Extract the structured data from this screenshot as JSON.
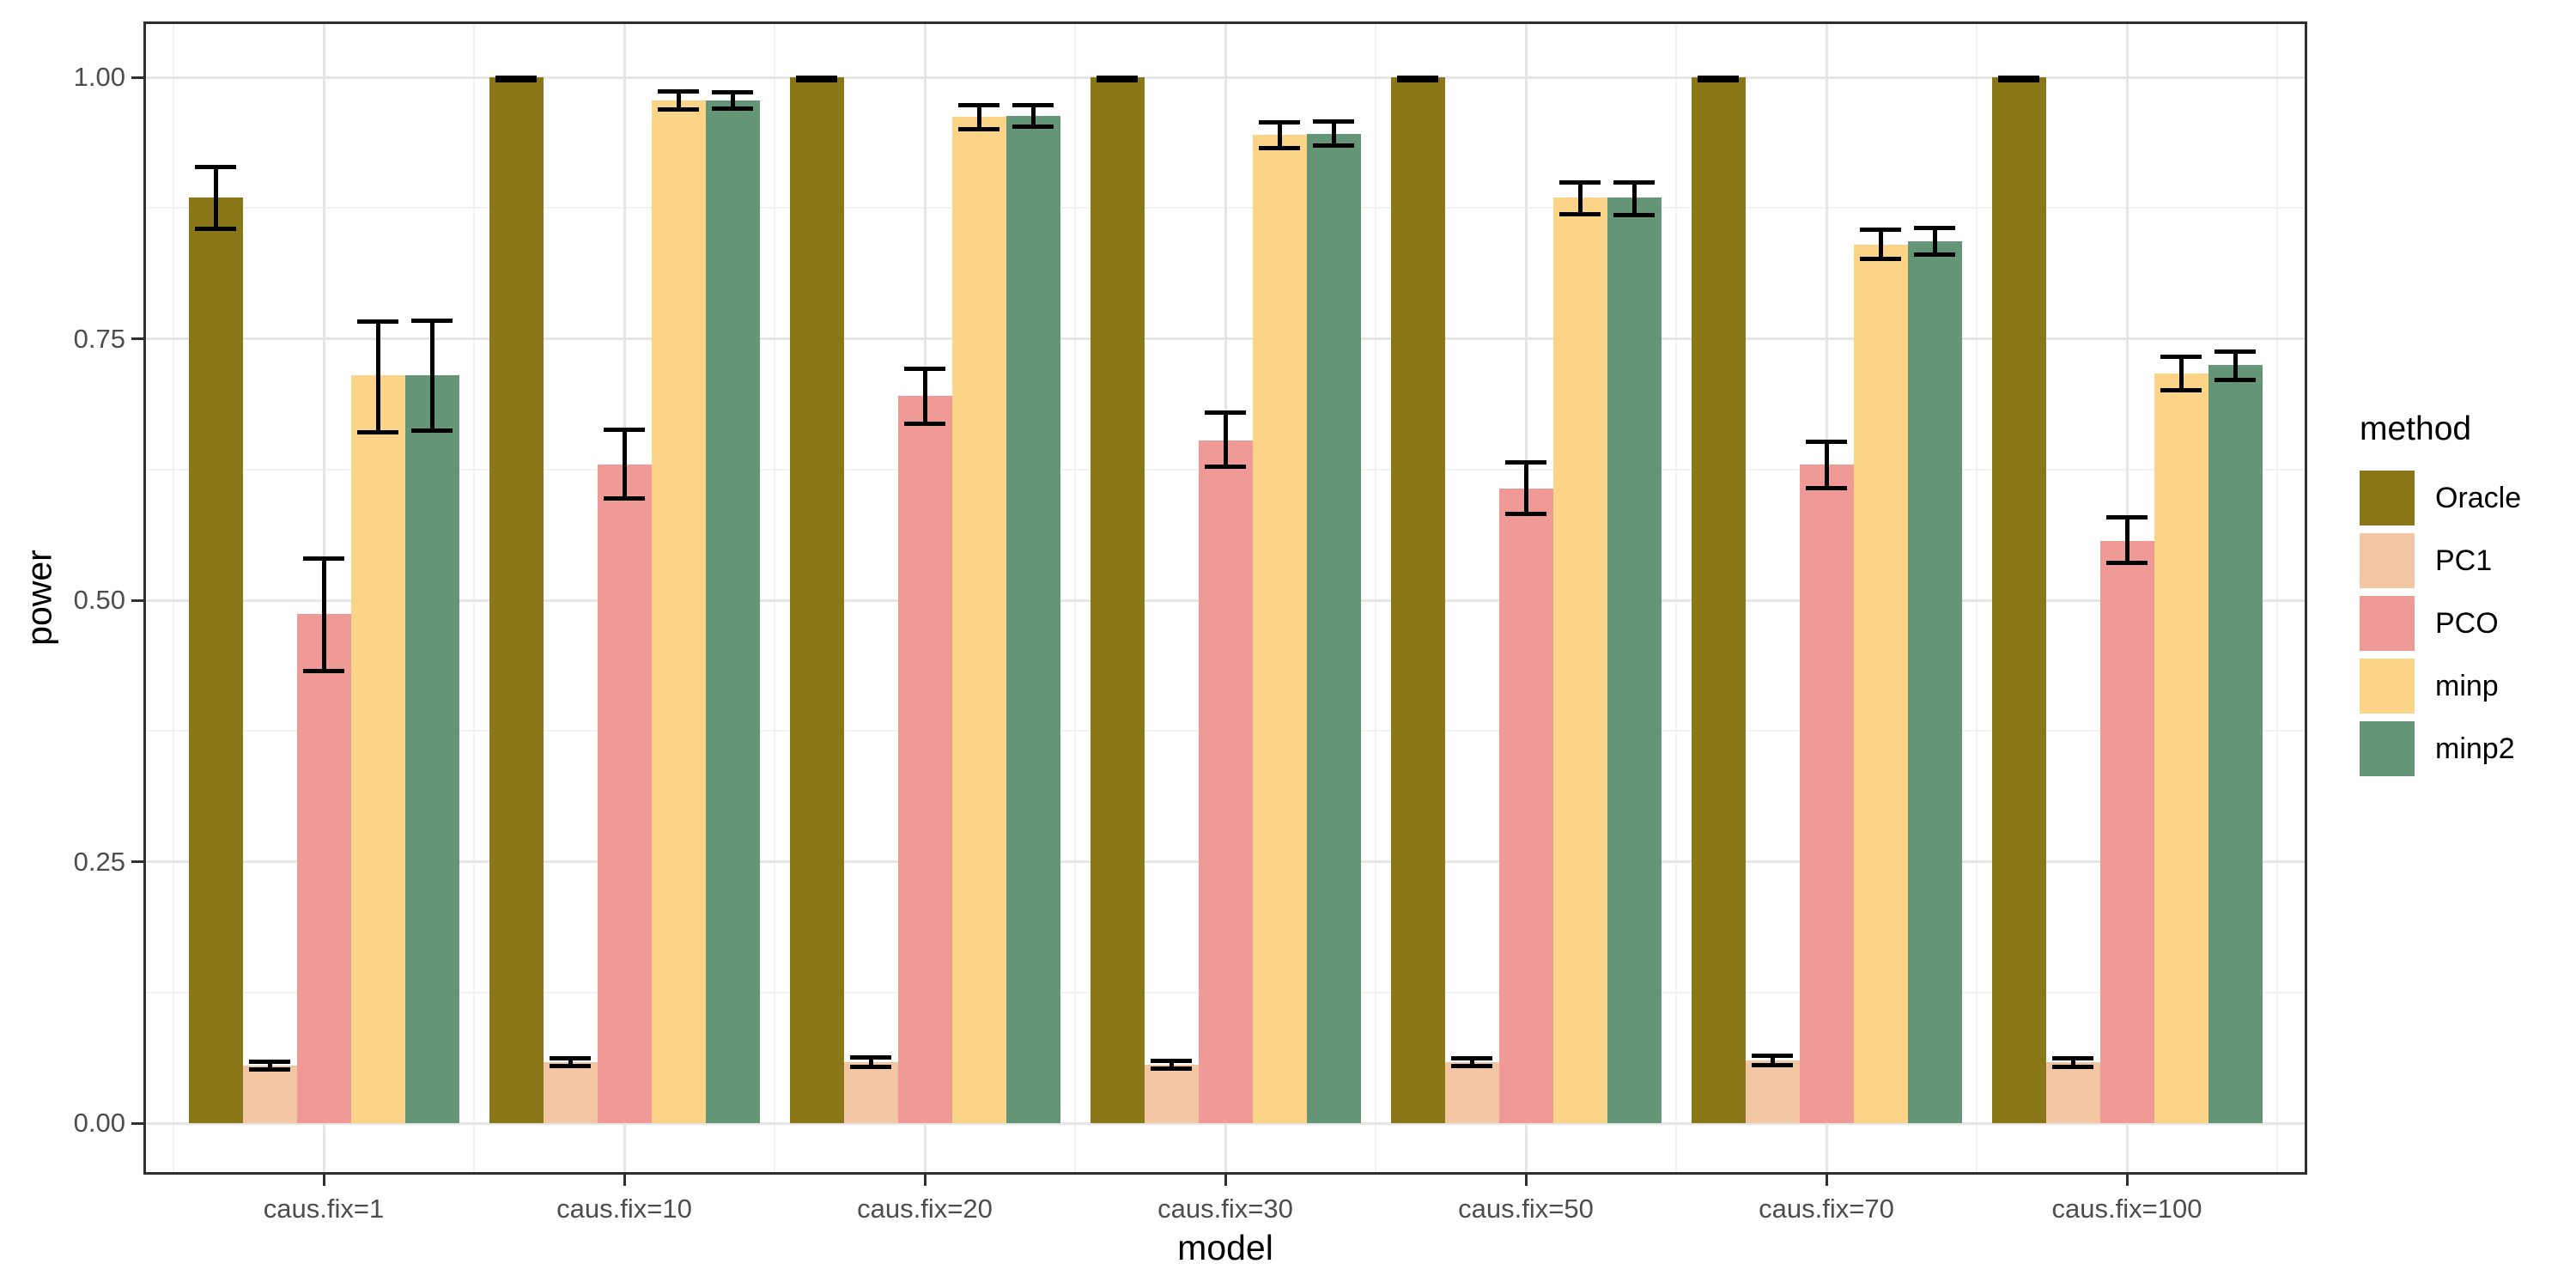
{
  "figure": {
    "xlabel": "model",
    "ylabel": "power",
    "legend_title": "method"
  },
  "chart_data": {
    "type": "bar",
    "title": "",
    "xlabel": "model",
    "ylabel": "power",
    "grid": true,
    "legend_position": "right",
    "legend_title": "method",
    "ylim": [
      0,
      1.0
    ],
    "yticks": [
      0,
      0.25,
      0.5,
      0.75,
      1.0
    ],
    "ytick_labels": [
      "0.00",
      "0.25",
      "0.50",
      "0.75",
      "1.00"
    ],
    "yticks_minor": [
      0.125,
      0.375,
      0.625,
      0.875
    ],
    "categories": [
      "caus.fix=1",
      "caus.fix=10",
      "caus.fix=20",
      "caus.fix=30",
      "caus.fix=50",
      "caus.fix=70",
      "caus.fix=100"
    ],
    "error_bars": true,
    "series": [
      {
        "name": "Oracle",
        "color": "#8a7718",
        "values": [
          0.885,
          1.0,
          1.0,
          1.0,
          1.0,
          1.0,
          1.0
        ],
        "err_lo": [
          0.855,
          0.997,
          0.997,
          0.997,
          0.997,
          0.997,
          0.997
        ],
        "err_hi": [
          0.915,
          1.0,
          1.0,
          1.0,
          1.0,
          1.0,
          1.0
        ]
      },
      {
        "name": "PC1",
        "color": "#f2c5a3",
        "values": [
          0.055,
          0.058,
          0.058,
          0.056,
          0.058,
          0.06,
          0.058
        ],
        "err_lo": [
          0.051,
          0.054,
          0.053,
          0.052,
          0.054,
          0.055,
          0.053
        ],
        "err_hi": [
          0.059,
          0.062,
          0.063,
          0.06,
          0.062,
          0.065,
          0.062
        ]
      },
      {
        "name": "PCO",
        "color": "#f09a98",
        "values": [
          0.487,
          0.63,
          0.695,
          0.653,
          0.607,
          0.63,
          0.557
        ],
        "err_lo": [
          0.432,
          0.597,
          0.668,
          0.627,
          0.582,
          0.607,
          0.535
        ],
        "err_hi": [
          0.54,
          0.663,
          0.722,
          0.68,
          0.632,
          0.652,
          0.58
        ]
      },
      {
        "name": "minp",
        "color": "#fbd488",
        "values": [
          0.715,
          0.978,
          0.962,
          0.945,
          0.885,
          0.84,
          0.717
        ],
        "err_lo": [
          0.66,
          0.969,
          0.95,
          0.932,
          0.869,
          0.826,
          0.7
        ],
        "err_hi": [
          0.767,
          0.987,
          0.974,
          0.957,
          0.9,
          0.855,
          0.733
        ]
      },
      {
        "name": "minp2",
        "color": "#649577",
        "values": [
          0.715,
          0.978,
          0.963,
          0.946,
          0.885,
          0.843,
          0.725
        ],
        "err_lo": [
          0.662,
          0.97,
          0.952,
          0.934,
          0.868,
          0.83,
          0.71
        ],
        "err_hi": [
          0.768,
          0.986,
          0.974,
          0.958,
          0.9,
          0.856,
          0.738
        ]
      }
    ],
    "style": {
      "grid_major_color": "#e6e6e6",
      "grid_minor_color": "#f2f2f2",
      "panel_border_color": "#2f2f2f",
      "error_bar_color": "#000000",
      "axis_text_color": "#4d4d4d",
      "axis_title_color": "#000000"
    }
  }
}
